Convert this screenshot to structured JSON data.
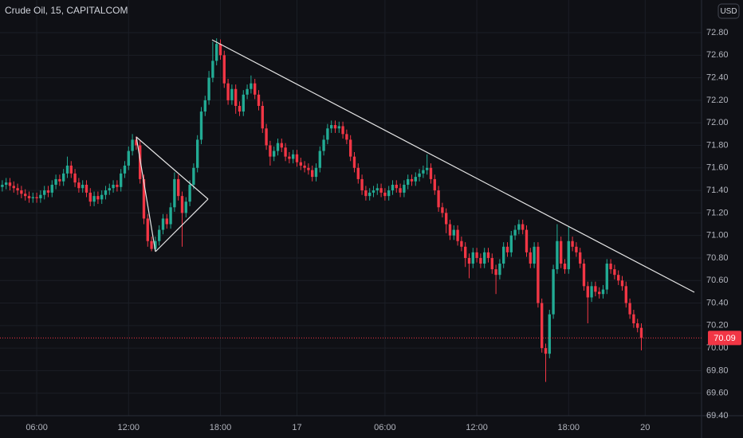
{
  "chart_data": {
    "type": "candlestick",
    "title": "Crude Oil, 15, CAPITALCOM",
    "currency": "USD",
    "up_color": "#22ab94",
    "down_color": "#f23645",
    "xlim": [
      -0.6,
      182.73
    ],
    "ylim": [
      69.4,
      73.09
    ],
    "grid": true,
    "xticks": [
      {
        "value": 9,
        "label": "06:00"
      },
      {
        "value": 33,
        "label": "12:00"
      },
      {
        "value": 57,
        "label": "18:00"
      },
      {
        "value": 77,
        "label": "17"
      },
      {
        "value": 100,
        "label": "06:00"
      },
      {
        "value": 124,
        "label": "12:00"
      },
      {
        "value": 148,
        "label": "18:00"
      },
      {
        "value": 168,
        "label": "20"
      }
    ],
    "yticks": [
      {
        "value": 69.4,
        "label": "69.40"
      },
      {
        "value": 69.6,
        "label": "69.60"
      },
      {
        "value": 69.8,
        "label": "69.80"
      },
      {
        "value": 70.0,
        "label": "70.00"
      },
      {
        "value": 70.2,
        "label": "70.20"
      },
      {
        "value": 70.4,
        "label": "70.40"
      },
      {
        "value": 70.6,
        "label": "70.60"
      },
      {
        "value": 70.8,
        "label": "70.80"
      },
      {
        "value": 71.0,
        "label": "71.00"
      },
      {
        "value": 71.2,
        "label": "71.20"
      },
      {
        "value": 71.4,
        "label": "71.40"
      },
      {
        "value": 71.6,
        "label": "71.60"
      },
      {
        "value": 71.8,
        "label": "71.80"
      },
      {
        "value": 72.0,
        "label": "72.00"
      },
      {
        "value": 72.2,
        "label": "72.20"
      },
      {
        "value": 72.4,
        "label": "72.40"
      },
      {
        "value": 72.6,
        "label": "72.60"
      },
      {
        "value": 72.8,
        "label": "72.80"
      }
    ],
    "last_price": {
      "value": 70.09,
      "label": "70.09"
    },
    "open": [
      71.43,
      71.45,
      71.47,
      71.44,
      71.42,
      71.4,
      71.37,
      71.35,
      71.33,
      71.34,
      71.33,
      71.36,
      71.4,
      71.38,
      71.45,
      71.5,
      71.48,
      71.55,
      71.62,
      71.55,
      71.47,
      71.42,
      71.45,
      71.38,
      71.3,
      71.35,
      71.32,
      71.36,
      71.4,
      71.42,
      71.45,
      71.43,
      71.55,
      71.62,
      71.75,
      71.85,
      71.8,
      71.5,
      71.15,
      70.95,
      70.88,
      70.95,
      71.05,
      71.15,
      71.1,
      71.25,
      71.5,
      71.35,
      71.2,
      71.3,
      71.45,
      71.6,
      71.85,
      72.1,
      72.2,
      72.4,
      72.55,
      72.7,
      72.6,
      72.35,
      72.2,
      72.3,
      72.15,
      72.1,
      72.25,
      72.3,
      72.35,
      72.25,
      72.15,
      71.95,
      71.8,
      71.7,
      71.75,
      71.82,
      71.78,
      71.7,
      71.68,
      71.72,
      71.65,
      71.62,
      71.6,
      71.58,
      71.52,
      71.6,
      71.75,
      71.85,
      71.95,
      71.98,
      71.95,
      71.97,
      71.9,
      71.85,
      71.7,
      71.6,
      71.5,
      71.4,
      71.35,
      71.38,
      71.4,
      71.42,
      71.38,
      71.35,
      71.4,
      71.45,
      71.42,
      71.38,
      71.45,
      71.5,
      71.48,
      71.52,
      71.55,
      71.58,
      71.6,
      71.5,
      71.4,
      71.25,
      71.2,
      71.1,
      71.0,
      71.05,
      70.95,
      70.9,
      70.8,
      70.75,
      70.85,
      70.8,
      70.75,
      70.85,
      70.8,
      70.7,
      70.65,
      70.75,
      70.9,
      70.85,
      71.0,
      71.05,
      71.1,
      71.05,
      70.85,
      70.75,
      70.9,
      70.4,
      70.0,
      69.95,
      70.3,
      70.7,
      70.95,
      70.75,
      70.7,
      70.95,
      70.9,
      70.85,
      70.75,
      70.55,
      70.45,
      70.55,
      70.5,
      70.48,
      70.52,
      70.75,
      70.7,
      70.65,
      70.6,
      70.55,
      70.4,
      70.3,
      70.22,
      70.18
    ],
    "high": [
      71.49,
      71.51,
      71.51,
      71.48,
      71.46,
      71.44,
      71.41,
      71.39,
      71.38,
      71.38,
      71.4,
      71.44,
      71.44,
      71.49,
      71.54,
      71.54,
      71.59,
      71.7,
      71.66,
      71.59,
      71.51,
      71.49,
      71.49,
      71.42,
      71.39,
      71.39,
      71.4,
      71.44,
      71.46,
      71.49,
      71.49,
      71.59,
      71.66,
      71.79,
      71.9,
      71.88,
      71.84,
      71.54,
      71.19,
      70.99,
      70.99,
      71.09,
      71.19,
      71.19,
      71.29,
      71.56,
      71.54,
      71.39,
      71.34,
      71.49,
      71.64,
      71.89,
      72.14,
      72.24,
      72.46,
      72.72,
      72.75,
      72.74,
      72.64,
      72.39,
      72.34,
      72.34,
      72.19,
      72.29,
      72.34,
      72.42,
      72.39,
      72.29,
      72.19,
      71.99,
      71.84,
      71.79,
      71.86,
      71.86,
      71.82,
      71.74,
      71.76,
      71.76,
      71.69,
      71.66,
      71.64,
      71.62,
      71.64,
      71.79,
      71.89,
      71.99,
      72.02,
      72.02,
      72.01,
      72.01,
      71.94,
      71.89,
      71.74,
      71.64,
      71.54,
      71.44,
      71.42,
      71.44,
      71.46,
      71.46,
      71.42,
      71.44,
      71.49,
      71.49,
      71.46,
      71.49,
      71.54,
      71.54,
      71.56,
      71.59,
      71.62,
      71.72,
      71.64,
      71.54,
      71.44,
      71.29,
      71.24,
      71.14,
      71.09,
      71.09,
      70.99,
      70.94,
      70.84,
      70.89,
      70.89,
      70.84,
      70.89,
      70.89,
      70.84,
      70.74,
      70.79,
      70.94,
      70.94,
      71.04,
      71.09,
      71.14,
      71.14,
      71.09,
      70.89,
      70.94,
      70.94,
      70.44,
      70.04,
      70.34,
      70.74,
      71.1,
      70.99,
      70.79,
      71.08,
      70.99,
      70.94,
      70.89,
      70.79,
      70.59,
      70.59,
      70.59,
      70.54,
      70.56,
      70.79,
      70.79,
      70.74,
      70.69,
      70.64,
      70.59,
      70.44,
      70.34,
      70.26,
      70.22
    ],
    "low": [
      71.39,
      71.41,
      71.4,
      71.38,
      71.36,
      71.33,
      71.31,
      71.29,
      71.29,
      71.29,
      71.29,
      71.32,
      71.34,
      71.34,
      71.41,
      71.44,
      71.44,
      71.51,
      71.51,
      71.43,
      71.38,
      71.38,
      71.34,
      71.26,
      71.26,
      71.28,
      71.28,
      71.32,
      71.36,
      71.38,
      71.39,
      71.39,
      71.51,
      71.58,
      71.71,
      71.76,
      71.46,
      71.1,
      70.9,
      70.86,
      70.86,
      70.91,
      71.01,
      71.06,
      71.06,
      71.21,
      71.31,
      70.9,
      71.16,
      71.26,
      71.41,
      71.56,
      71.81,
      72.06,
      72.16,
      72.36,
      72.51,
      72.56,
      72.31,
      72.16,
      72.16,
      72.08,
      72.06,
      72.06,
      72.21,
      72.26,
      72.21,
      72.11,
      71.91,
      71.76,
      71.62,
      71.66,
      71.71,
      71.74,
      71.66,
      71.64,
      71.64,
      71.61,
      71.58,
      71.56,
      71.54,
      71.48,
      71.48,
      71.56,
      71.71,
      71.81,
      71.91,
      71.91,
      71.91,
      71.86,
      71.81,
      71.66,
      71.56,
      71.46,
      71.36,
      71.31,
      71.31,
      71.34,
      71.36,
      71.34,
      71.31,
      71.31,
      71.36,
      71.38,
      71.34,
      71.34,
      71.41,
      71.44,
      71.44,
      71.48,
      71.51,
      71.54,
      71.46,
      71.36,
      71.21,
      71.16,
      71.02,
      70.96,
      70.96,
      70.91,
      70.86,
      70.72,
      70.62,
      70.71,
      70.76,
      70.71,
      70.71,
      70.76,
      70.66,
      70.48,
      70.61,
      70.71,
      70.81,
      70.81,
      70.96,
      71.01,
      71.01,
      70.81,
      70.71,
      70.71,
      70.36,
      69.96,
      69.7,
      69.91,
      70.26,
      70.66,
      70.71,
      70.66,
      70.66,
      70.86,
      70.81,
      70.71,
      70.51,
      70.22,
      70.41,
      70.46,
      70.44,
      70.44,
      70.48,
      70.66,
      70.61,
      70.56,
      70.51,
      70.36,
      70.26,
      70.18,
      70.14,
      69.98
    ],
    "close": [
      71.45,
      71.47,
      71.44,
      71.42,
      71.4,
      71.37,
      71.35,
      71.33,
      71.34,
      71.33,
      71.36,
      71.4,
      71.38,
      71.45,
      71.5,
      71.48,
      71.55,
      71.62,
      71.55,
      71.47,
      71.42,
      71.45,
      71.38,
      71.3,
      71.35,
      71.32,
      71.36,
      71.4,
      71.42,
      71.45,
      71.43,
      71.55,
      71.62,
      71.75,
      71.85,
      71.8,
      71.5,
      71.15,
      70.95,
      70.88,
      70.95,
      71.05,
      71.15,
      71.1,
      71.25,
      71.5,
      71.35,
      71.2,
      71.3,
      71.45,
      71.6,
      71.85,
      72.1,
      72.2,
      72.4,
      72.55,
      72.7,
      72.6,
      72.35,
      72.2,
      72.3,
      72.15,
      72.1,
      72.25,
      72.3,
      72.35,
      72.25,
      72.15,
      71.95,
      71.8,
      71.7,
      71.75,
      71.82,
      71.78,
      71.7,
      71.68,
      71.72,
      71.65,
      71.62,
      71.6,
      71.58,
      71.52,
      71.6,
      71.75,
      71.85,
      71.95,
      71.98,
      71.95,
      71.97,
      71.9,
      71.85,
      71.7,
      71.6,
      71.5,
      71.4,
      71.35,
      71.38,
      71.4,
      71.42,
      71.38,
      71.35,
      71.4,
      71.45,
      71.42,
      71.38,
      71.45,
      71.5,
      71.48,
      71.52,
      71.55,
      71.58,
      71.6,
      71.5,
      71.4,
      71.25,
      71.2,
      71.1,
      71.0,
      71.05,
      70.95,
      70.9,
      70.8,
      70.75,
      70.85,
      70.8,
      70.75,
      70.85,
      70.8,
      70.7,
      70.65,
      70.75,
      70.9,
      70.85,
      71.0,
      71.05,
      71.1,
      71.05,
      70.85,
      70.75,
      70.9,
      70.4,
      70.0,
      69.95,
      70.3,
      70.7,
      70.95,
      70.75,
      70.7,
      70.95,
      70.9,
      70.85,
      70.75,
      70.55,
      70.45,
      70.55,
      70.5,
      70.48,
      70.52,
      70.75,
      70.7,
      70.65,
      70.6,
      70.55,
      70.4,
      70.3,
      70.22,
      70.18,
      70.09
    ]
  }
}
